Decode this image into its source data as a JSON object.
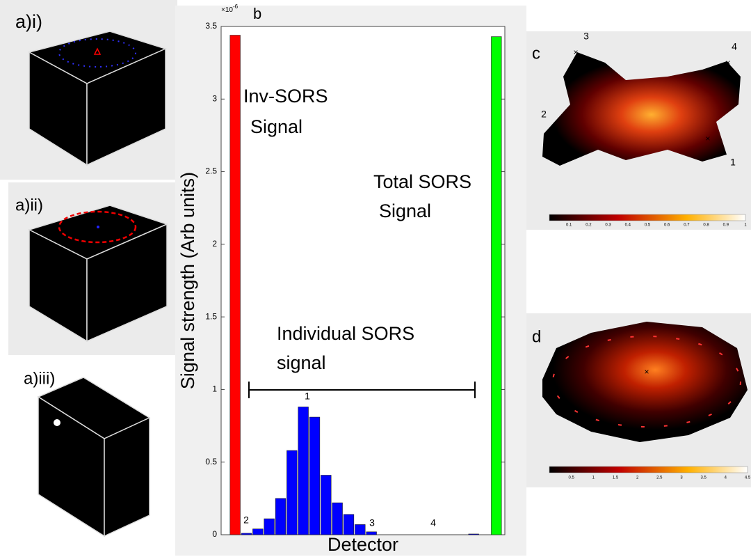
{
  "panels": {
    "a1": {
      "label": "a)i)"
    },
    "a2": {
      "label": "a)ii)"
    },
    "a3": {
      "label": "a)iii)"
    },
    "c": {
      "label": "c",
      "markers": [
        "1",
        "2",
        "3",
        "4"
      ],
      "colorbar_ticks": [
        "0.1",
        "0.2",
        "0.3",
        "0.4",
        "0.5",
        "0.6",
        "0.7",
        "0.8",
        "0.9",
        "1"
      ]
    },
    "d": {
      "label": "d",
      "colorbar_ticks": [
        "0.5",
        "1",
        "1.5",
        "2",
        "2.5",
        "3",
        "3.5",
        "4",
        "4.5"
      ]
    }
  },
  "chart_data": {
    "type": "bar",
    "panel_label": "b",
    "y_multiplier": {
      "base": "×10",
      "power": "-6"
    },
    "ylabel": "Signal strength (Arb units)",
    "xlabel": "Detector",
    "categories": [
      null,
      null,
      null,
      null,
      null,
      null,
      null,
      null,
      null,
      null,
      null,
      null,
      null,
      null,
      null,
      null,
      null,
      null,
      null,
      null,
      null,
      null,
      null,
      null
    ],
    "values": [
      3.44,
      0.01,
      0.04,
      0.11,
      0.25,
      0.58,
      0.88,
      0.81,
      0.41,
      0.22,
      0.14,
      0.07,
      0.02,
      0,
      0,
      0,
      0,
      0,
      0,
      0,
      0,
      0.005,
      0,
      3.43
    ],
    "colors": [
      "#ff0000",
      "#0000ff",
      "#0000ff",
      "#0000ff",
      "#0000ff",
      "#0000ff",
      "#0000ff",
      "#0000ff",
      "#0000ff",
      "#0000ff",
      "#0000ff",
      "#0000ff",
      "#0000ff",
      "#0000ff",
      "#0000ff",
      "#0000ff",
      "#0000ff",
      "#0000ff",
      "#0000ff",
      "#0000ff",
      "#0000ff",
      "#0000ff",
      "#0000ff",
      "#00ff00"
    ],
    "ylim": [
      0,
      3.5
    ],
    "yticks": [
      0,
      0.5,
      1,
      1.5,
      2,
      2.5,
      3,
      3.5
    ],
    "annotations": {
      "inv_sors": [
        "Inv-SORS",
        "Signal"
      ],
      "total_sors": [
        "Total SORS",
        "Signal"
      ],
      "individual": [
        "Individual SORS",
        "signal"
      ],
      "detector_numbers": [
        "1",
        "2",
        "3",
        "4"
      ]
    }
  }
}
